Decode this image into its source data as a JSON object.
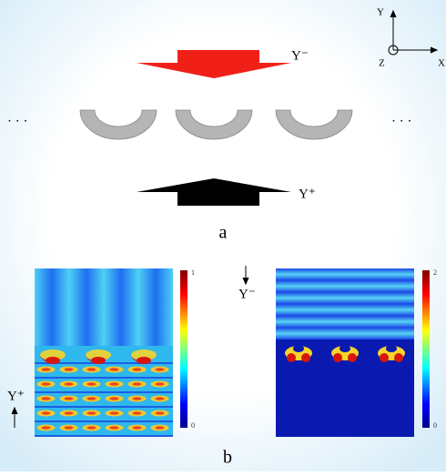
{
  "panel_a": {
    "axes": {
      "y": "Y",
      "z": "Z",
      "x": "X"
    },
    "top_arrow_label": "Y⁻",
    "bottom_arrow_label": "Y⁺",
    "left_ellipsis": "· · ·",
    "right_ellipsis": "· · ·",
    "caption": "a"
  },
  "panel_b": {
    "left_plot": {
      "colorbar_max": "1",
      "colorbar_min": "0",
      "incidence_label": "Y⁺"
    },
    "right_plot": {
      "colorbar_max": "2",
      "colorbar_min": "0",
      "incidence_label": "Y⁻"
    },
    "caption": "b"
  }
}
